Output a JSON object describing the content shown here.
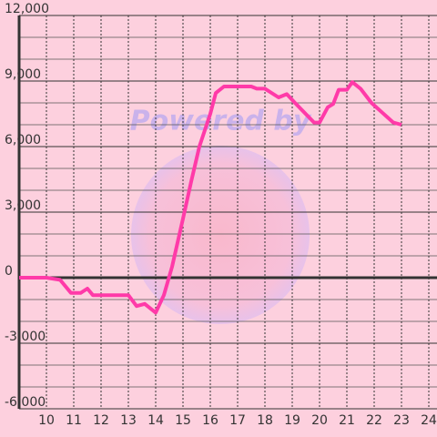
{
  "chart_data": {
    "type": "line",
    "watermark": "Powered by",
    "x": [
      9,
      10,
      10.5,
      10.9,
      11.25,
      11.5,
      11.7,
      13,
      13.3,
      13.6,
      14,
      14.3,
      14.6,
      15,
      15.3,
      15.6,
      16,
      16.2,
      16.5,
      17.5,
      17.7,
      18,
      18.5,
      18.8,
      19.1,
      19.8,
      20,
      20.3,
      20.5,
      20.7,
      21,
      21.2,
      21.5,
      21.9,
      22.3,
      22.7,
      23
    ],
    "series": [
      {
        "color": "#ff3aa8",
        "values": [
          0,
          0,
          -100,
          -700,
          -700,
          -500,
          -800,
          -800,
          -1300,
          -1200,
          -1600,
          -800,
          500,
          2700,
          4400,
          6000,
          7500,
          8450,
          8750,
          8750,
          8650,
          8650,
          8250,
          8400,
          8000,
          7100,
          7100,
          7800,
          7950,
          8600,
          8600,
          8950,
          8650,
          8000,
          7550,
          7100,
          7000
        ]
      }
    ],
    "xlim": [
      9,
      24.3
    ],
    "xticks": [
      10,
      11,
      12,
      13,
      14,
      15,
      16,
      17,
      18,
      19,
      20,
      21,
      22,
      23,
      24
    ],
    "ylim": [
      -6000,
      12000
    ],
    "yticks": [
      {
        "value": -6000,
        "label": "-6,000"
      },
      {
        "value": -3000,
        "label": "-3,000"
      },
      0,
      {
        "value": 3000,
        "label": "3,000"
      },
      {
        "value": 6000,
        "label": "6,000"
      },
      {
        "value": 9000,
        "label": "9,000"
      },
      {
        "value": 12000,
        "label": "12,000"
      }
    ],
    "yticks_minor": [
      -5000,
      -4000,
      -2000,
      -1000,
      1000,
      2000,
      4000,
      5000,
      7000,
      8000,
      10000,
      11000
    ],
    "grid": true
  }
}
